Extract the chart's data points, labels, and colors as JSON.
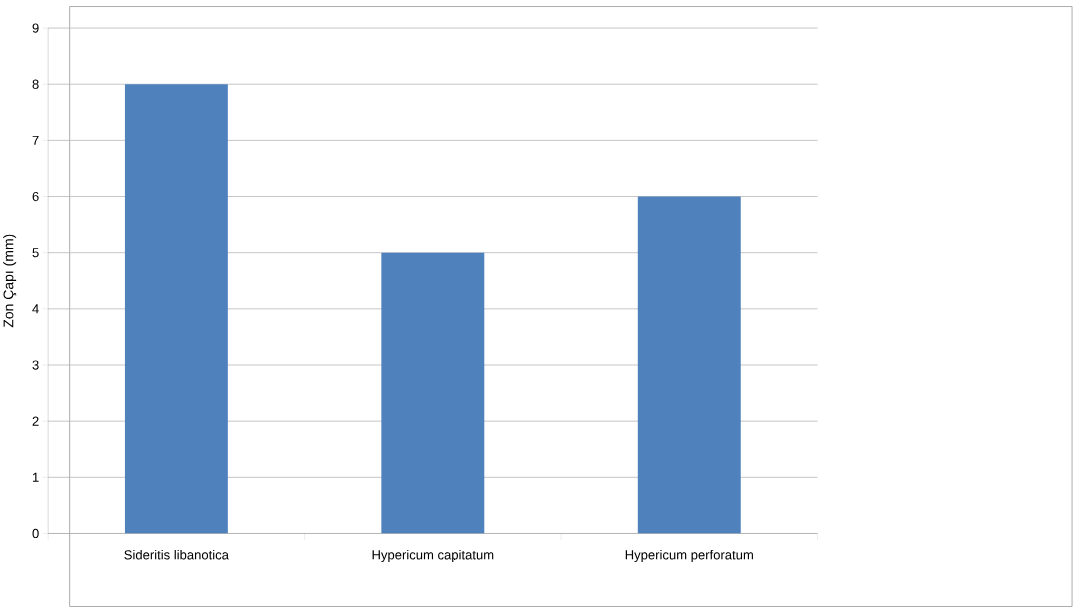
{
  "chart_data": {
    "type": "bar",
    "ylabel": "Zon Çapı (mm)",
    "categories": [
      "Sideritis libanotica",
      "Hypericum capitatum",
      "Hypericum perforatum"
    ],
    "values": [
      8,
      5,
      6
    ],
    "color": "#4f81bd",
    "ylim": [
      0,
      9
    ],
    "yticks": [
      0,
      1,
      2,
      3,
      4,
      5,
      6,
      7,
      8,
      9
    ],
    "grid": "y"
  }
}
